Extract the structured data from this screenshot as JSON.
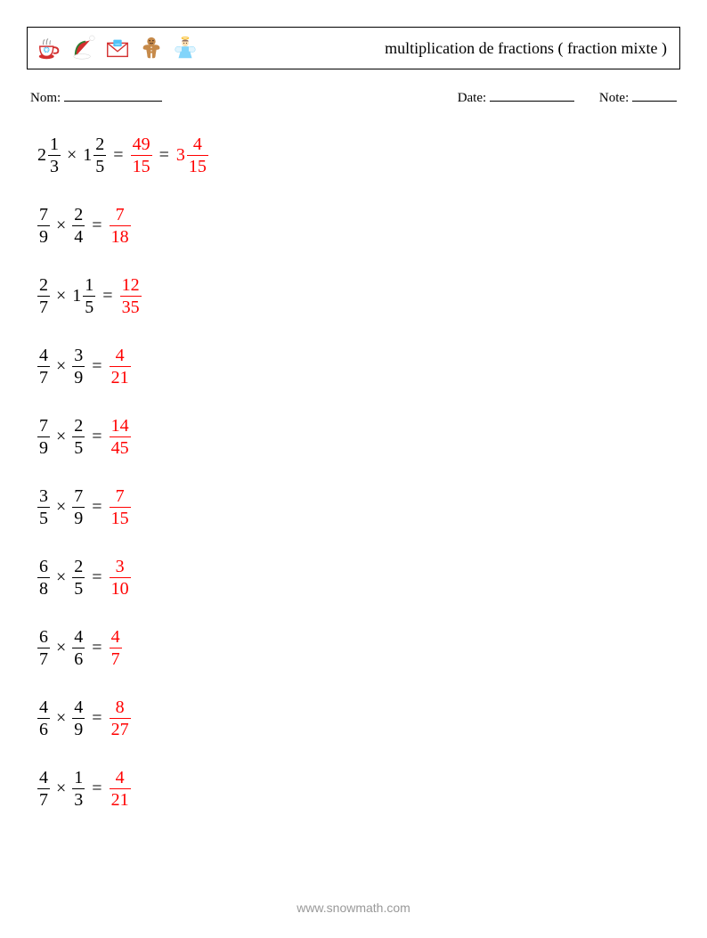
{
  "header": {
    "title": "multiplication de fractions ( fraction mixte )",
    "title_fontsize": 18
  },
  "icons": [
    {
      "name": "cup-icon"
    },
    {
      "name": "santa-hat-icon"
    },
    {
      "name": "envelope-icon"
    },
    {
      "name": "gingerbread-icon"
    },
    {
      "name": "angel-icon"
    }
  ],
  "fields": {
    "name_label": "Nom:",
    "date_label": "Date:",
    "note_label": "Note:",
    "name_underline_width": 110,
    "date_underline_width": 95,
    "note_underline_width": 50
  },
  "colors": {
    "text": "#000000",
    "answer": "#ff0000",
    "background": "#ffffff",
    "footer": "#999999",
    "border": "#000000"
  },
  "typography": {
    "problem_fontsize": 20,
    "field_fontsize": 15,
    "footer_fontsize": 14
  },
  "problems": [
    {
      "a": {
        "whole": "2",
        "num": "1",
        "den": "3"
      },
      "b": {
        "whole": "1",
        "num": "2",
        "den": "5"
      },
      "results": [
        {
          "whole": null,
          "num": "49",
          "den": "15"
        },
        {
          "whole": "3",
          "num": "4",
          "den": "15"
        }
      ]
    },
    {
      "a": {
        "whole": null,
        "num": "7",
        "den": "9"
      },
      "b": {
        "whole": null,
        "num": "2",
        "den": "4"
      },
      "results": [
        {
          "whole": null,
          "num": "7",
          "den": "18"
        }
      ]
    },
    {
      "a": {
        "whole": null,
        "num": "2",
        "den": "7"
      },
      "b": {
        "whole": "1",
        "num": "1",
        "den": "5"
      },
      "results": [
        {
          "whole": null,
          "num": "12",
          "den": "35"
        }
      ]
    },
    {
      "a": {
        "whole": null,
        "num": "4",
        "den": "7"
      },
      "b": {
        "whole": null,
        "num": "3",
        "den": "9"
      },
      "results": [
        {
          "whole": null,
          "num": "4",
          "den": "21"
        }
      ]
    },
    {
      "a": {
        "whole": null,
        "num": "7",
        "den": "9"
      },
      "b": {
        "whole": null,
        "num": "2",
        "den": "5"
      },
      "results": [
        {
          "whole": null,
          "num": "14",
          "den": "45"
        }
      ]
    },
    {
      "a": {
        "whole": null,
        "num": "3",
        "den": "5"
      },
      "b": {
        "whole": null,
        "num": "7",
        "den": "9"
      },
      "results": [
        {
          "whole": null,
          "num": "7",
          "den": "15"
        }
      ]
    },
    {
      "a": {
        "whole": null,
        "num": "6",
        "den": "8"
      },
      "b": {
        "whole": null,
        "num": "2",
        "den": "5"
      },
      "results": [
        {
          "whole": null,
          "num": "3",
          "den": "10"
        }
      ]
    },
    {
      "a": {
        "whole": null,
        "num": "6",
        "den": "7"
      },
      "b": {
        "whole": null,
        "num": "4",
        "den": "6"
      },
      "results": [
        {
          "whole": null,
          "num": "4",
          "den": "7"
        }
      ]
    },
    {
      "a": {
        "whole": null,
        "num": "4",
        "den": "6"
      },
      "b": {
        "whole": null,
        "num": "4",
        "den": "9"
      },
      "results": [
        {
          "whole": null,
          "num": "8",
          "den": "27"
        }
      ]
    },
    {
      "a": {
        "whole": null,
        "num": "4",
        "den": "7"
      },
      "b": {
        "whole": null,
        "num": "1",
        "den": "3"
      },
      "results": [
        {
          "whole": null,
          "num": "4",
          "den": "21"
        }
      ]
    }
  ],
  "footer": {
    "text": "www.snowmath.com"
  }
}
